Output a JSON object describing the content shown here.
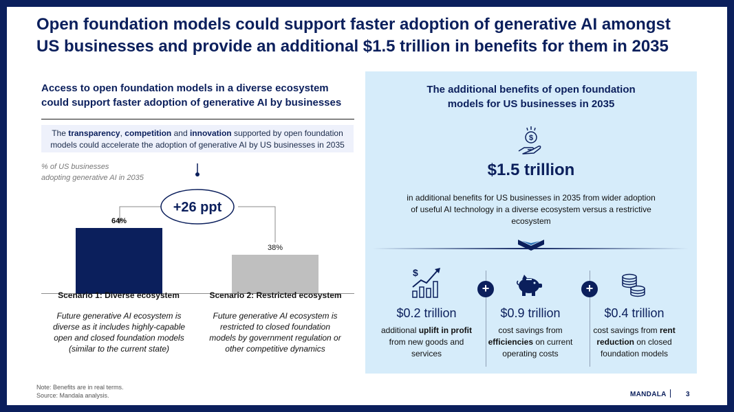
{
  "slide": {
    "title": "Open foundation models could support faster adoption of generative AI amongst US businesses and provide an additional $1.5 trillion in benefits for them in 2035"
  },
  "left": {
    "heading": "Access to open foundation models in a diverse ecosystem could support faster adoption of generative AI by businesses",
    "callout": {
      "t1": "The ",
      "b1": "transparency",
      "t2": ", ",
      "b2": "competition",
      "t3": " and ",
      "b3": "innovation",
      "t4": " supported by open foundation models could accelerate the adoption of generative AI by US businesses in 2035"
    },
    "axis_note_line1": "% of US businesses",
    "axis_note_line2": "adopting generative AI in 2035",
    "scenario1": {
      "title": "Scenario 1: Diverse ecosystem",
      "desc": "Future generative AI ecosystem is diverse as it includes highly-capable open and closed foundation models (similar to the current state)"
    },
    "scenario2": {
      "title": "Scenario 2: Restricted ecosystem",
      "desc": "Future generative AI ecosystem is restricted to closed foundation models by government regulation or other competitive dynamics"
    }
  },
  "chart_data": {
    "type": "bar",
    "categories": [
      "Scenario 1: Diverse ecosystem",
      "Scenario 2: Restricted ecosystem"
    ],
    "values": [
      64,
      38
    ],
    "labels": [
      "64%",
      "38%"
    ],
    "colors": [
      "#0b1f5c",
      "#bfbfbf"
    ],
    "ylabel": "% of US businesses adopting generative AI in 2035",
    "ylim": [
      0,
      70
    ],
    "annotation": "+26 ppt"
  },
  "right": {
    "heading": "The additional benefits of open foundation models for US businesses in 2035",
    "total_value": "$1.5 trillion",
    "total_desc": "in additional benefits for US businesses in 2035 from wider adoption of useful AI technology in a diverse ecosystem versus a restrictive ecosystem",
    "plus": "+",
    "benefits": [
      {
        "value": "$0.2 trillion",
        "d1": "additional ",
        "b": "uplift in profit",
        "d2": " from new goods and services",
        "icon": "growth-chart-icon"
      },
      {
        "value": "$0.9 trillion",
        "d1": "cost savings from ",
        "b": "efficiencies",
        "d2": " on current operating costs",
        "icon": "piggy-bank-icon"
      },
      {
        "value": "$0.4 trillion",
        "d1": "cost savings from ",
        "b": "rent reduction",
        "d2": " on closed foundation models",
        "icon": "coins-icon"
      }
    ]
  },
  "footer": {
    "note": "Note: Benefits are in real terms.",
    "source": "Source: Mandala analysis.",
    "brand": "MANDALA",
    "page": "3"
  }
}
